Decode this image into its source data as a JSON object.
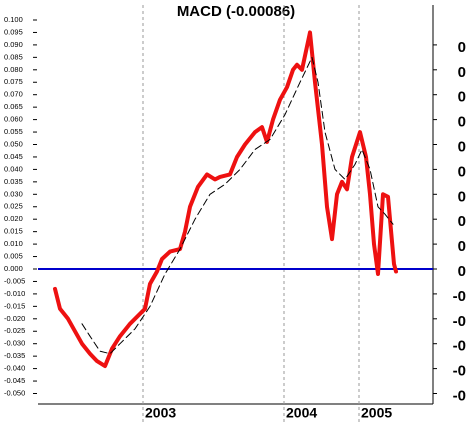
{
  "chart_data": {
    "type": "line",
    "title": "MACD (-0.00086)",
    "xlim": [
      0,
      395
    ],
    "xticks": [
      {
        "value": 105,
        "label": "2003"
      },
      {
        "value": 246,
        "label": "2004"
      },
      {
        "value": 321,
        "label": "2005"
      }
    ],
    "ylim": [
      -0.05,
      0.1
    ],
    "yticks": [
      {
        "value": 0.1,
        "label": "0.100"
      },
      {
        "value": 0.095,
        "label": "0.095"
      },
      {
        "value": 0.09,
        "label": "0.090"
      },
      {
        "value": 0.085,
        "label": "0.085"
      },
      {
        "value": 0.08,
        "label": "0.080"
      },
      {
        "value": 0.075,
        "label": "0.075"
      },
      {
        "value": 0.07,
        "label": "0.070"
      },
      {
        "value": 0.065,
        "label": "0.065"
      },
      {
        "value": 0.06,
        "label": "0.060"
      },
      {
        "value": 0.055,
        "label": "0.055"
      },
      {
        "value": 0.05,
        "label": "0.050"
      },
      {
        "value": 0.045,
        "label": "0.045"
      },
      {
        "value": 0.04,
        "label": "0.040"
      },
      {
        "value": 0.035,
        "label": "0.035"
      },
      {
        "value": 0.03,
        "label": "0.030"
      },
      {
        "value": 0.025,
        "label": "0.025"
      },
      {
        "value": 0.02,
        "label": "0.020"
      },
      {
        "value": 0.015,
        "label": "0.015"
      },
      {
        "value": 0.01,
        "label": "0.010"
      },
      {
        "value": 0.005,
        "label": "0.005"
      },
      {
        "value": 0,
        "label": "0.000"
      },
      {
        "value": -0.005,
        "label": "-0.005"
      },
      {
        "value": -0.01,
        "label": "-0.010"
      },
      {
        "value": -0.015,
        "label": "-0.015"
      },
      {
        "value": -0.02,
        "label": "-0.020"
      },
      {
        "value": -0.025,
        "label": "-0.025"
      },
      {
        "value": -0.03,
        "label": "-0.030"
      },
      {
        "value": -0.035,
        "label": "-0.035"
      },
      {
        "value": -0.04,
        "label": "-0.040"
      },
      {
        "value": -0.045,
        "label": "-0.045"
      },
      {
        "value": -0.05,
        "label": "-0.050"
      }
    ],
    "y2lim": [
      -0.05,
      0.1
    ],
    "y2ticks": [
      {
        "value": 0.09,
        "label": "0"
      },
      {
        "value": 0.08,
        "label": "0"
      },
      {
        "value": 0.07,
        "label": "0"
      },
      {
        "value": 0.06,
        "label": "0"
      },
      {
        "value": 0.05,
        "label": "0"
      },
      {
        "value": 0.04,
        "label": "0"
      },
      {
        "value": 0.03,
        "label": "0"
      },
      {
        "value": 0.02,
        "label": "0"
      },
      {
        "value": 0.01,
        "label": "0"
      },
      {
        "value": 0,
        "label": "0"
      },
      {
        "value": -0.01,
        "label": "-0"
      },
      {
        "value": -0.02,
        "label": "-0"
      },
      {
        "value": -0.03,
        "label": "-0"
      },
      {
        "value": -0.04,
        "label": "-0"
      },
      {
        "value": -0.05,
        "label": "-0"
      }
    ],
    "hline": {
      "value": 0,
      "color": "#0000cc"
    },
    "series": [
      {
        "color": "#ee1111",
        "width": 4,
        "dash": false,
        "x": [
          17,
          22,
          30,
          37,
          44,
          52,
          59,
          67,
          74,
          82,
          92,
          102,
          107,
          112,
          119,
          124,
          132,
          142,
          147,
          152,
          160,
          169,
          177,
          182,
          192,
          199,
          207,
          217,
          224,
          229,
          235,
          242,
          249,
          255,
          259,
          264,
          272,
          277,
          284,
          289,
          294,
          299,
          304,
          309,
          314,
          322,
          328,
          332,
          336,
          340,
          345,
          350,
          356,
          358
        ],
        "values": [
          -0.008,
          -0.016,
          -0.02,
          -0.025,
          -0.03,
          -0.034,
          -0.037,
          -0.039,
          -0.032,
          -0.027,
          -0.022,
          -0.018,
          -0.016,
          -0.006,
          -0.001,
          0.004,
          0.007,
          0.008,
          0.015,
          0.025,
          0.033,
          0.038,
          0.036,
          0.037,
          0.038,
          0.045,
          0.05,
          0.055,
          0.057,
          0.051,
          0.06,
          0.068,
          0.073,
          0.08,
          0.082,
          0.08,
          0.095,
          0.075,
          0.05,
          0.025,
          0.012,
          0.03,
          0.035,
          0.032,
          0.045,
          0.055,
          0.045,
          0.03,
          0.01,
          -0.002,
          0.03,
          0.029,
          0.002,
          -0.001
        ]
      },
      {
        "color": "#000000",
        "width": 1,
        "dash": true,
        "x": [
          44,
          52,
          62,
          72,
          82,
          97,
          112,
          127,
          142,
          157,
          172,
          187,
          202,
          217,
          232,
          247,
          262,
          274,
          280,
          287,
          297,
          307,
          317,
          324,
          332,
          340,
          347,
          355
        ],
        "values": [
          -0.022,
          -0.027,
          -0.033,
          -0.034,
          -0.03,
          -0.024,
          -0.015,
          -0.002,
          0.008,
          0.02,
          0.03,
          0.034,
          0.04,
          0.048,
          0.052,
          0.062,
          0.075,
          0.085,
          0.075,
          0.055,
          0.04,
          0.036,
          0.042,
          0.048,
          0.04,
          0.025,
          0.022,
          0.018
        ]
      }
    ]
  }
}
